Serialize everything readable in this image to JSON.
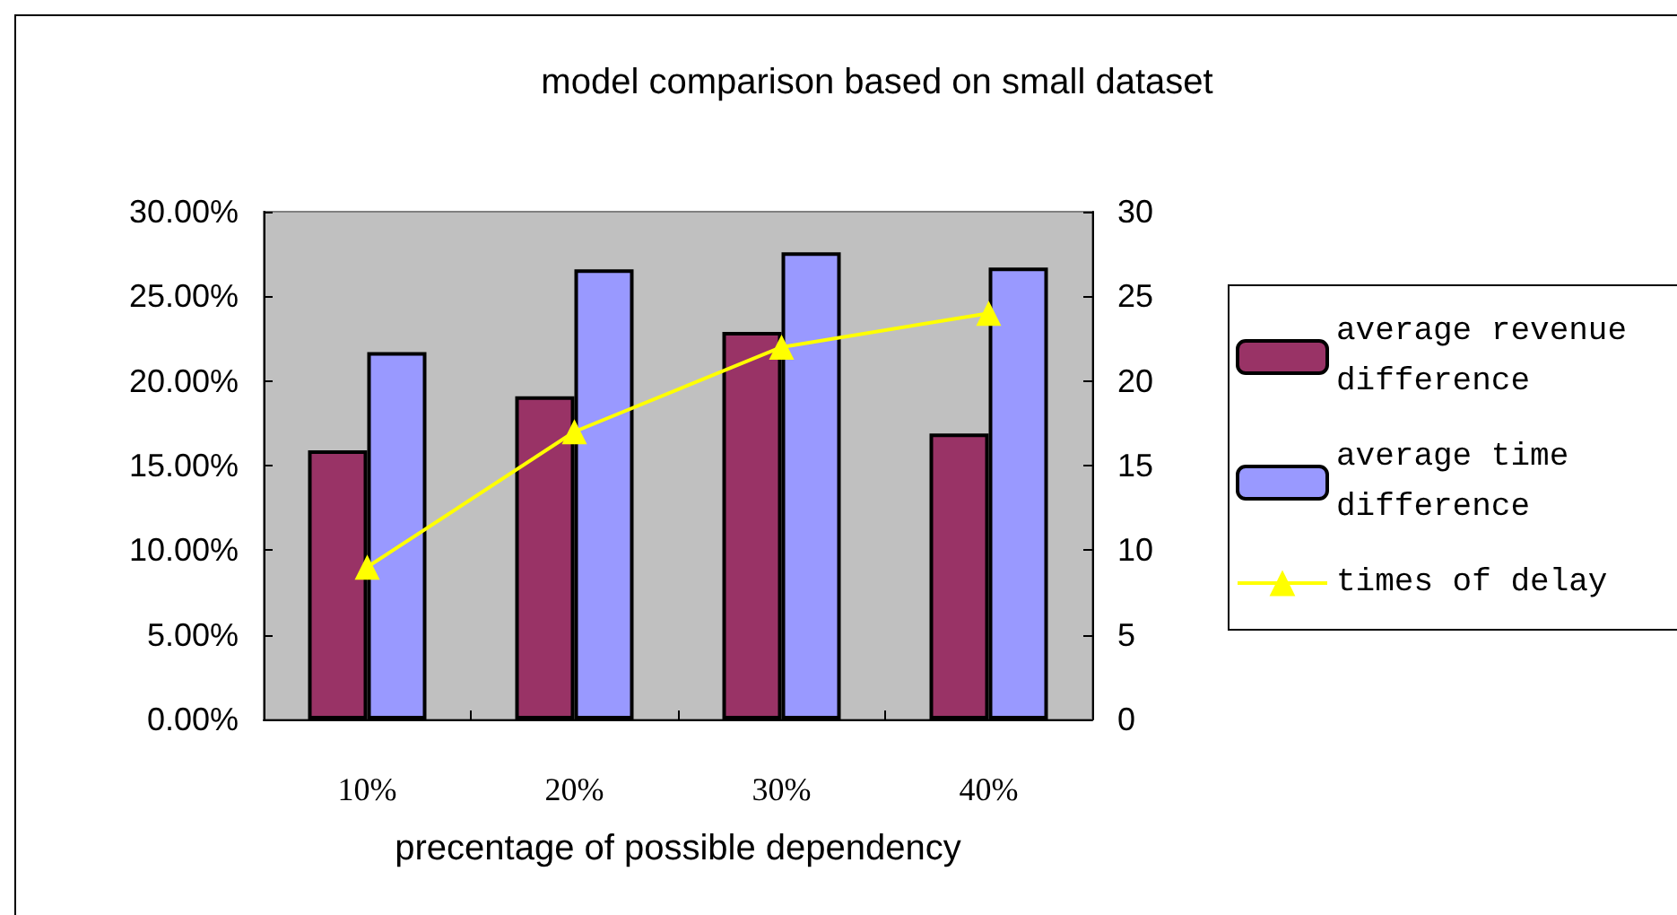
{
  "chart_data": {
    "type": "bar",
    "title": "model comparison based on small dataset",
    "xlabel": "precentage of possible dependency",
    "categories": [
      "10%",
      "20%",
      "30%",
      "40%"
    ],
    "series": [
      {
        "name": "average revenue difference",
        "color": "#993366",
        "values": [
          0.159,
          0.191,
          0.229,
          0.169
        ]
      },
      {
        "name": "average time difference",
        "color": "#9999ff",
        "values": [
          0.217,
          0.266,
          0.276,
          0.267
        ]
      },
      {
        "name": "times of delay",
        "type": "line",
        "axis": "y2",
        "color": "#ffff00",
        "marker": "triangle",
        "values": [
          9,
          17,
          22,
          24
        ]
      }
    ],
    "ylim": [
      0,
      0.3
    ],
    "yticks": [
      {
        "value": 0,
        "label": "0.00%"
      },
      {
        "value": 0.05,
        "label": "5.00%"
      },
      {
        "value": 0.1,
        "label": "10.00%"
      },
      {
        "value": 0.15,
        "label": "15.00%"
      },
      {
        "value": 0.2,
        "label": "20.00%"
      },
      {
        "value": 0.25,
        "label": "25.00%"
      },
      {
        "value": 0.3,
        "label": "30.00%"
      }
    ],
    "y2lim": [
      0,
      30
    ],
    "y2ticks": [
      0,
      5,
      10,
      15,
      20,
      25,
      30
    ],
    "grid": false,
    "legend": "right"
  }
}
